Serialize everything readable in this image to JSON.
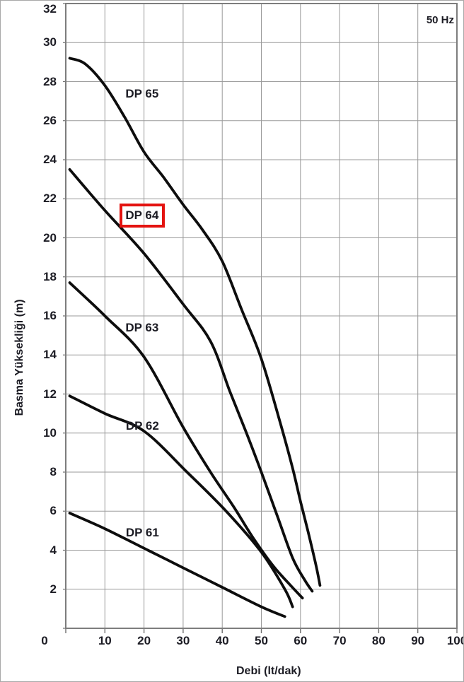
{
  "figure": {
    "frequency_label": "50 Hz"
  },
  "chart_data": {
    "type": "line",
    "title": "",
    "xlabel": "Debi (lt/dak)",
    "ylabel": "Basma Yüksekliği (m)",
    "xlim": [
      0,
      100
    ],
    "ylim": [
      0,
      32
    ],
    "x_ticks": [
      0,
      10,
      20,
      30,
      40,
      50,
      60,
      70,
      80,
      90,
      100
    ],
    "y_ticks": [
      2,
      4,
      6,
      8,
      10,
      12,
      14,
      16,
      18,
      20,
      22,
      24,
      26,
      28,
      30,
      32
    ],
    "grid": true,
    "legend_position": "inline-curve-labels",
    "line_color": "#0d0d0d",
    "grid_color": "#9a9a9a",
    "frame_color": "#7d7d7d",
    "text_color": "#1c1c24",
    "highlight_color": "#e41310",
    "series": [
      {
        "name": "DP 65",
        "label_at": [
          19.5,
          27.35
        ],
        "points": [
          [
            1,
            29.2
          ],
          [
            5,
            28.9
          ],
          [
            10,
            27.8
          ],
          [
            15,
            26.2
          ],
          [
            20,
            24.4
          ],
          [
            25,
            23.1
          ],
          [
            30,
            21.7
          ],
          [
            35,
            20.4
          ],
          [
            40,
            18.8
          ],
          [
            45,
            16.3
          ],
          [
            50,
            13.8
          ],
          [
            55,
            10.4
          ],
          [
            58,
            8.2
          ],
          [
            60,
            6.5
          ],
          [
            62,
            4.9
          ],
          [
            64,
            3.2
          ],
          [
            65,
            2.2
          ]
        ]
      },
      {
        "name": "DP 64",
        "label_at": [
          19.5,
          21.15
        ],
        "points": [
          [
            1,
            23.5
          ],
          [
            10,
            21.4
          ],
          [
            20,
            19.2
          ],
          [
            30,
            16.6
          ],
          [
            37,
            14.7
          ],
          [
            42,
            12.1
          ],
          [
            46,
            10.1
          ],
          [
            50,
            8.0
          ],
          [
            54,
            5.8
          ],
          [
            58,
            3.6
          ],
          [
            61,
            2.5
          ],
          [
            63,
            1.9
          ]
        ]
      },
      {
        "name": "DP 63",
        "label_at": [
          19.5,
          15.4
        ],
        "points": [
          [
            1,
            17.7
          ],
          [
            10,
            16.0
          ],
          [
            20,
            13.9
          ],
          [
            30,
            10.3
          ],
          [
            37,
            8.0
          ],
          [
            43,
            6.2
          ],
          [
            48,
            4.6
          ],
          [
            53,
            3.2
          ],
          [
            57,
            2.3
          ],
          [
            60.5,
            1.55
          ]
        ]
      },
      {
        "name": "DP 62",
        "label_at": [
          19.6,
          10.35
        ],
        "points": [
          [
            1,
            11.9
          ],
          [
            10,
            11.0
          ],
          [
            20,
            10.1
          ],
          [
            31,
            8.0
          ],
          [
            41,
            6.0
          ],
          [
            50,
            3.9
          ],
          [
            56,
            2.0
          ],
          [
            58,
            1.1
          ]
        ]
      },
      {
        "name": "DP 61",
        "label_at": [
          19.6,
          4.9
        ],
        "points": [
          [
            1,
            5.9
          ],
          [
            10,
            5.1
          ],
          [
            21,
            4.0
          ],
          [
            30,
            3.1
          ],
          [
            40,
            2.1
          ],
          [
            50,
            1.1
          ],
          [
            56,
            0.6
          ]
        ]
      }
    ],
    "annotations": [
      {
        "type": "highlight_box",
        "target_series": "DP 64",
        "color": "#e41310"
      }
    ]
  }
}
